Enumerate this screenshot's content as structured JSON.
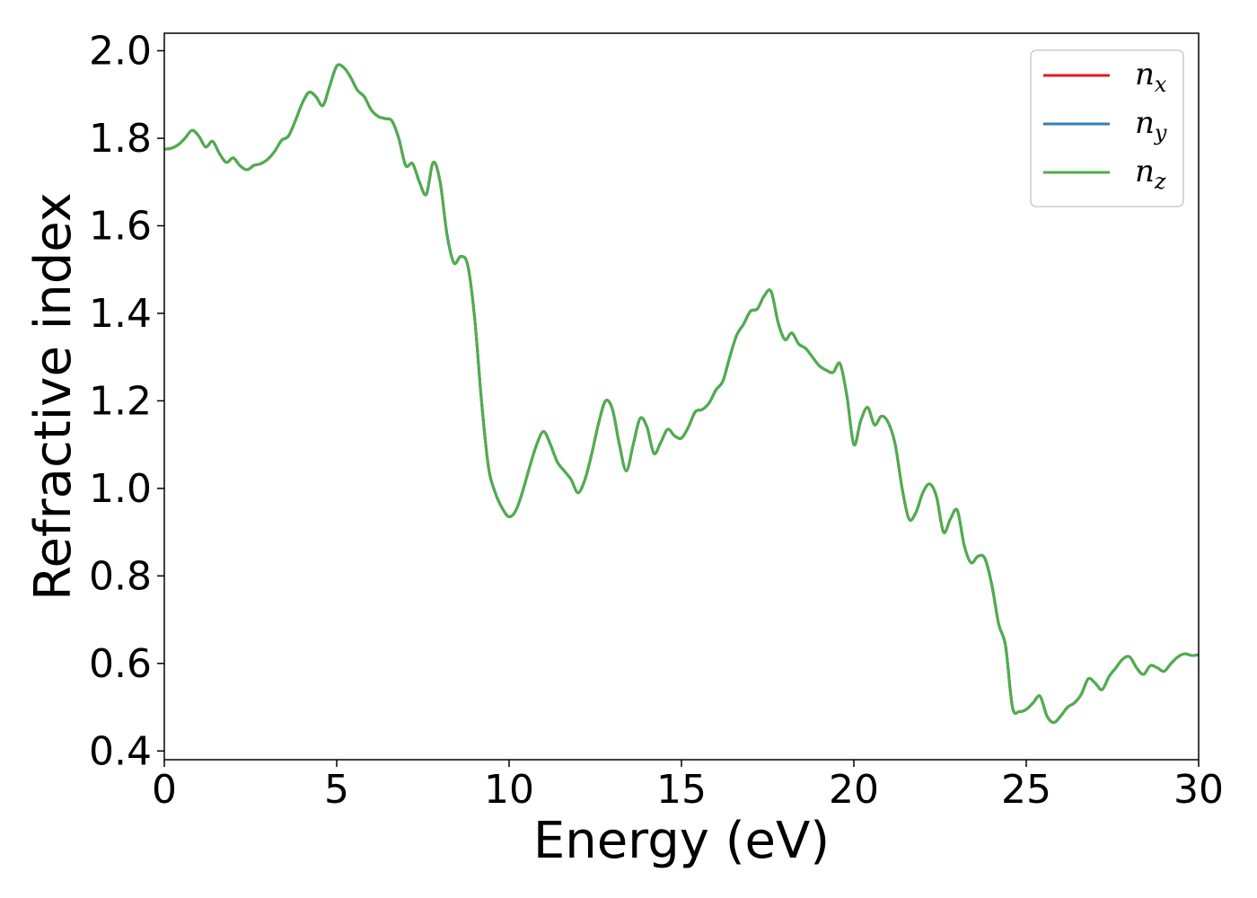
{
  "chart_data": {
    "type": "line",
    "xlabel": "Energy (eV)",
    "ylabel": "Refractive index",
    "xlim": [
      0,
      30
    ],
    "ylim": [
      0.38,
      2.04
    ],
    "xticks": [
      "0",
      "5",
      "10",
      "15",
      "20",
      "25",
      "30"
    ],
    "yticks": [
      "0.4",
      "0.6",
      "0.8",
      "1.0",
      "1.2",
      "1.4",
      "1.6",
      "1.8",
      "2.0"
    ],
    "legend_position": "top-right",
    "grid": false,
    "series": [
      {
        "name": "n_x",
        "label_base": "n",
        "label_sub": "x",
        "color": "#e41a1c",
        "x": [
          0,
          0.2,
          0.4,
          0.6,
          0.8,
          1.0,
          1.2,
          1.4,
          1.6,
          1.8,
          2.0,
          2.2,
          2.4,
          2.6,
          2.8,
          3.0,
          3.2,
          3.4,
          3.6,
          3.8,
          4.0,
          4.2,
          4.4,
          4.6,
          4.8,
          5.0,
          5.2,
          5.4,
          5.6,
          5.8,
          6.0,
          6.2,
          6.4,
          6.6,
          6.8,
          7.0,
          7.2,
          7.4,
          7.6,
          7.8,
          8.0,
          8.2,
          8.4,
          8.6,
          8.8,
          9.0,
          9.2,
          9.4,
          9.6,
          9.8,
          10.0,
          10.2,
          10.4,
          10.6,
          10.8,
          11.0,
          11.2,
          11.4,
          11.6,
          11.8,
          12.0,
          12.2,
          12.4,
          12.6,
          12.8,
          13.0,
          13.2,
          13.4,
          13.6,
          13.8,
          14.0,
          14.2,
          14.4,
          14.6,
          14.8,
          15.0,
          15.2,
          15.4,
          15.6,
          15.8,
          16.0,
          16.2,
          16.4,
          16.6,
          16.8,
          17.0,
          17.2,
          17.4,
          17.6,
          17.8,
          18.0,
          18.2,
          18.4,
          18.6,
          18.8,
          19.0,
          19.2,
          19.4,
          19.6,
          19.8,
          20.0,
          20.2,
          20.4,
          20.6,
          20.8,
          21.0,
          21.2,
          21.4,
          21.6,
          21.8,
          22.0,
          22.2,
          22.4,
          22.6,
          22.8,
          23.0,
          23.2,
          23.4,
          23.6,
          23.8,
          24.0,
          24.2,
          24.4,
          24.6,
          24.8,
          25.0,
          25.2,
          25.4,
          25.6,
          25.8,
          26.0,
          26.2,
          26.4,
          26.6,
          26.8,
          27.0,
          27.2,
          27.4,
          27.6,
          27.8,
          28.0,
          28.2,
          28.4,
          28.6,
          28.8,
          29.0,
          29.2,
          29.4,
          29.6,
          29.8,
          30.0
        ],
        "y": [
          1.775,
          1.777,
          1.785,
          1.8,
          1.818,
          1.805,
          1.78,
          1.793,
          1.765,
          1.745,
          1.755,
          1.737,
          1.728,
          1.738,
          1.742,
          1.752,
          1.77,
          1.795,
          1.805,
          1.84,
          1.88,
          1.905,
          1.895,
          1.875,
          1.92,
          1.965,
          1.962,
          1.94,
          1.91,
          1.895,
          1.865,
          1.85,
          1.845,
          1.84,
          1.8,
          1.738,
          1.742,
          1.7,
          1.672,
          1.745,
          1.7,
          1.58,
          1.515,
          1.53,
          1.51,
          1.39,
          1.2,
          1.05,
          0.99,
          0.955,
          0.935,
          0.95,
          0.995,
          1.05,
          1.1,
          1.13,
          1.1,
          1.06,
          1.04,
          1.02,
          0.99,
          1.02,
          1.08,
          1.15,
          1.2,
          1.18,
          1.1,
          1.04,
          1.1,
          1.16,
          1.14,
          1.08,
          1.105,
          1.135,
          1.12,
          1.115,
          1.14,
          1.175,
          1.18,
          1.195,
          1.225,
          1.245,
          1.3,
          1.35,
          1.375,
          1.405,
          1.41,
          1.44,
          1.45,
          1.38,
          1.34,
          1.355,
          1.33,
          1.32,
          1.3,
          1.28,
          1.27,
          1.265,
          1.285,
          1.21,
          1.1,
          1.155,
          1.185,
          1.145,
          1.165,
          1.15,
          1.1,
          1.0,
          0.93,
          0.945,
          0.99,
          1.01,
          0.98,
          0.9,
          0.93,
          0.95,
          0.87,
          0.83,
          0.845,
          0.84,
          0.78,
          0.69,
          0.64,
          0.5,
          0.49,
          0.495,
          0.51,
          0.525,
          0.48,
          0.465,
          0.48,
          0.5,
          0.51,
          0.53,
          0.565,
          0.555,
          0.54,
          0.57,
          0.59,
          0.61,
          0.615,
          0.59,
          0.575,
          0.595,
          0.59,
          0.582,
          0.6,
          0.615,
          0.622,
          0.618,
          0.62
        ]
      },
      {
        "name": "n_y",
        "label_base": "n",
        "label_sub": "y",
        "color": "#377eb8",
        "same_as": 0
      },
      {
        "name": "n_z",
        "label_base": "n",
        "label_sub": "z",
        "color": "#4daf4a",
        "same_as": 0
      }
    ]
  }
}
